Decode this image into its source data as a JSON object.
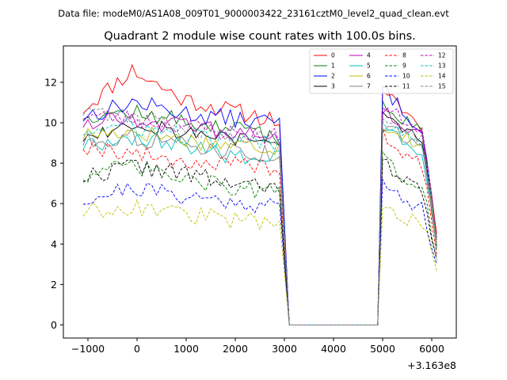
{
  "figure": {
    "suptitle": "Data file: modeM0/AS1A08_009T01_9000003422_23161cztM0_level2_quad_clean.evt"
  },
  "chart_data": {
    "type": "line",
    "title": "Quadrant 2 module wise count rates with 100.0s bins.",
    "xlabel": "",
    "ylabel": "",
    "x_offset_label": "+3.163e8",
    "xlim": [
      -1500,
      6500
    ],
    "ylim": [
      -0.65,
      13.8
    ],
    "xticks": [
      -1000,
      0,
      1000,
      2000,
      3000,
      4000,
      5000,
      6000
    ],
    "yticks": [
      0,
      2,
      4,
      6,
      8,
      10,
      12
    ],
    "grid": false,
    "legend_position": "top-right",
    "x_segments": [
      {
        "start": -1100,
        "end": 2900,
        "step": 100
      },
      {
        "start": 3100,
        "end": 4900,
        "step": 100
      },
      {
        "start": 5000,
        "end": 6100,
        "step": 100
      }
    ],
    "gap_value": 0.0,
    "series": [
      {
        "name": "0",
        "color": "#ff0000",
        "dashed": false,
        "seed": 11,
        "seg1": [
          10.7,
          12.6,
          11.2,
          10.6,
          10.1
        ],
        "seg3": [
          11.3,
          11.0,
          10.4,
          9.5,
          4.5
        ]
      },
      {
        "name": "1",
        "color": "#008000",
        "dashed": false,
        "seed": 12,
        "seg1": [
          10.4,
          10.5,
          10.1,
          9.7,
          9.3
        ],
        "seg3": [
          10.9,
          10.3,
          10.0,
          9.4,
          4.3
        ]
      },
      {
        "name": "2",
        "color": "#0000ff",
        "dashed": false,
        "seed": 13,
        "seg1": [
          10.3,
          11.0,
          10.5,
          10.2,
          10.0
        ],
        "seg3": [
          11.7,
          11.0,
          10.2,
          9.7,
          3.9
        ]
      },
      {
        "name": "3",
        "color": "#000000",
        "dashed": false,
        "seed": 14,
        "seg1": [
          9.3,
          10.0,
          9.6,
          9.2,
          8.9
        ],
        "seg3": [
          10.5,
          10.0,
          9.5,
          9.0,
          3.9
        ]
      },
      {
        "name": "4",
        "color": "#bf00bf",
        "dashed": false,
        "seed": 15,
        "seg1": [
          10.0,
          10.3,
          9.8,
          9.5,
          9.2
        ],
        "seg3": [
          10.5,
          10.2,
          9.7,
          9.3,
          4.2
        ]
      },
      {
        "name": "5",
        "color": "#00bfbf",
        "dashed": false,
        "seed": 16,
        "seg1": [
          8.9,
          9.3,
          8.9,
          8.4,
          8.2
        ],
        "seg3": [
          9.7,
          9.4,
          8.9,
          8.6,
          3.7
        ]
      },
      {
        "name": "6",
        "color": "#bfbf00",
        "dashed": false,
        "seed": 17,
        "seg1": [
          9.4,
          9.6,
          9.2,
          8.9,
          8.8
        ],
        "seg3": [
          9.9,
          9.6,
          9.2,
          8.8,
          4.0
        ]
      },
      {
        "name": "7",
        "color": "#808080",
        "dashed": false,
        "seed": 18,
        "seg1": [
          9.1,
          9.3,
          8.9,
          8.6,
          8.4
        ],
        "seg3": [
          9.8,
          9.5,
          9.1,
          8.6,
          3.8
        ]
      },
      {
        "name": "8",
        "color": "#ff0000",
        "dashed": true,
        "seed": 19,
        "seg1": [
          8.9,
          8.5,
          8.1,
          7.9,
          7.8
        ],
        "seg3": [
          9.4,
          8.7,
          8.3,
          7.8,
          3.5
        ]
      },
      {
        "name": "9",
        "color": "#008000",
        "dashed": true,
        "seed": 20,
        "seg1": [
          7.4,
          7.8,
          7.2,
          6.8,
          6.5
        ],
        "seg3": [
          8.3,
          7.6,
          7.2,
          6.7,
          3.2
        ]
      },
      {
        "name": "10",
        "color": "#0000ff",
        "dashed": true,
        "seed": 21,
        "seg1": [
          6.2,
          6.8,
          6.4,
          6.1,
          5.9
        ],
        "seg3": [
          7.0,
          6.5,
          6.1,
          5.7,
          3.0
        ]
      },
      {
        "name": "11",
        "color": "#000000",
        "dashed": true,
        "seed": 22,
        "seg1": [
          7.3,
          7.9,
          7.5,
          7.0,
          6.7
        ],
        "seg3": [
          8.1,
          7.5,
          7.0,
          6.6,
          3.3
        ]
      },
      {
        "name": "12",
        "color": "#bf00bf",
        "dashed": true,
        "seed": 23,
        "seg1": [
          10.4,
          10.2,
          9.9,
          9.5,
          9.3
        ],
        "seg3": [
          10.7,
          10.4,
          10.0,
          9.6,
          4.2
        ]
      },
      {
        "name": "13",
        "color": "#00bfbf",
        "dashed": true,
        "seed": 24,
        "seg1": [
          9.6,
          9.8,
          9.4,
          9.1,
          9.0
        ],
        "seg3": [
          10.1,
          9.8,
          9.4,
          9.1,
          4.1
        ]
      },
      {
        "name": "14",
        "color": "#bfbf00",
        "dashed": true,
        "seed": 25,
        "seg1": [
          5.6,
          5.9,
          5.5,
          5.2,
          5.1
        ],
        "seg3": [
          5.9,
          5.5,
          5.2,
          4.9,
          2.7
        ]
      },
      {
        "name": "15",
        "color": "#808080",
        "dashed": true,
        "seed": 26,
        "seg1": [
          10.6,
          10.4,
          9.8,
          9.4,
          9.1
        ],
        "seg3": [
          10.4,
          10.0,
          9.6,
          9.2,
          4.1
        ]
      }
    ]
  }
}
